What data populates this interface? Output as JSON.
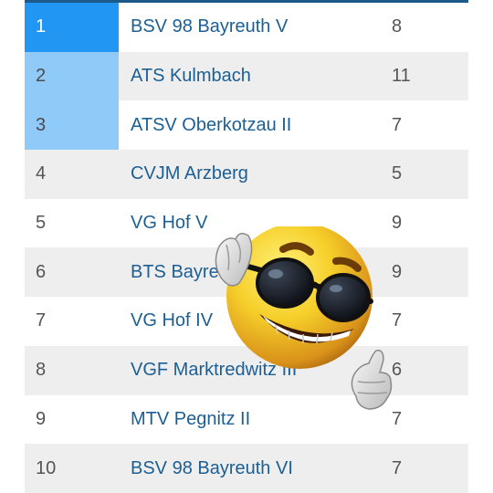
{
  "standings": {
    "rows": [
      {
        "rank": "1",
        "team": "BSV 98 Bayreuth V",
        "points": "8"
      },
      {
        "rank": "2",
        "team": "ATS Kulmbach",
        "points": "11"
      },
      {
        "rank": "3",
        "team": "ATSV Oberkotzau II",
        "points": "7"
      },
      {
        "rank": "4",
        "team": "CVJM Arzberg",
        "points": "5"
      },
      {
        "rank": "5",
        "team": "VG Hof V",
        "points": "9"
      },
      {
        "rank": "6",
        "team": "BTS Bayreuth",
        "points": "9"
      },
      {
        "rank": "7",
        "team": "VG Hof IV",
        "points": "7"
      },
      {
        "rank": "8",
        "team": "VGF Marktredwitz III",
        "points": "6"
      },
      {
        "rank": "9",
        "team": "MTV Pegnitz II",
        "points": "7"
      },
      {
        "rank": "10",
        "team": "BSV 98 Bayreuth VI",
        "points": "7"
      }
    ]
  },
  "colors": {
    "promotion_primary": "#2196f3",
    "promotion_secondary": "#90caf9",
    "team_link": "#1c5f94",
    "row_alt": "#eeeeee",
    "header_line": "#1b5a8a"
  },
  "overlay": {
    "icon": "sunglasses-thumbs-up-emoji-icon"
  }
}
